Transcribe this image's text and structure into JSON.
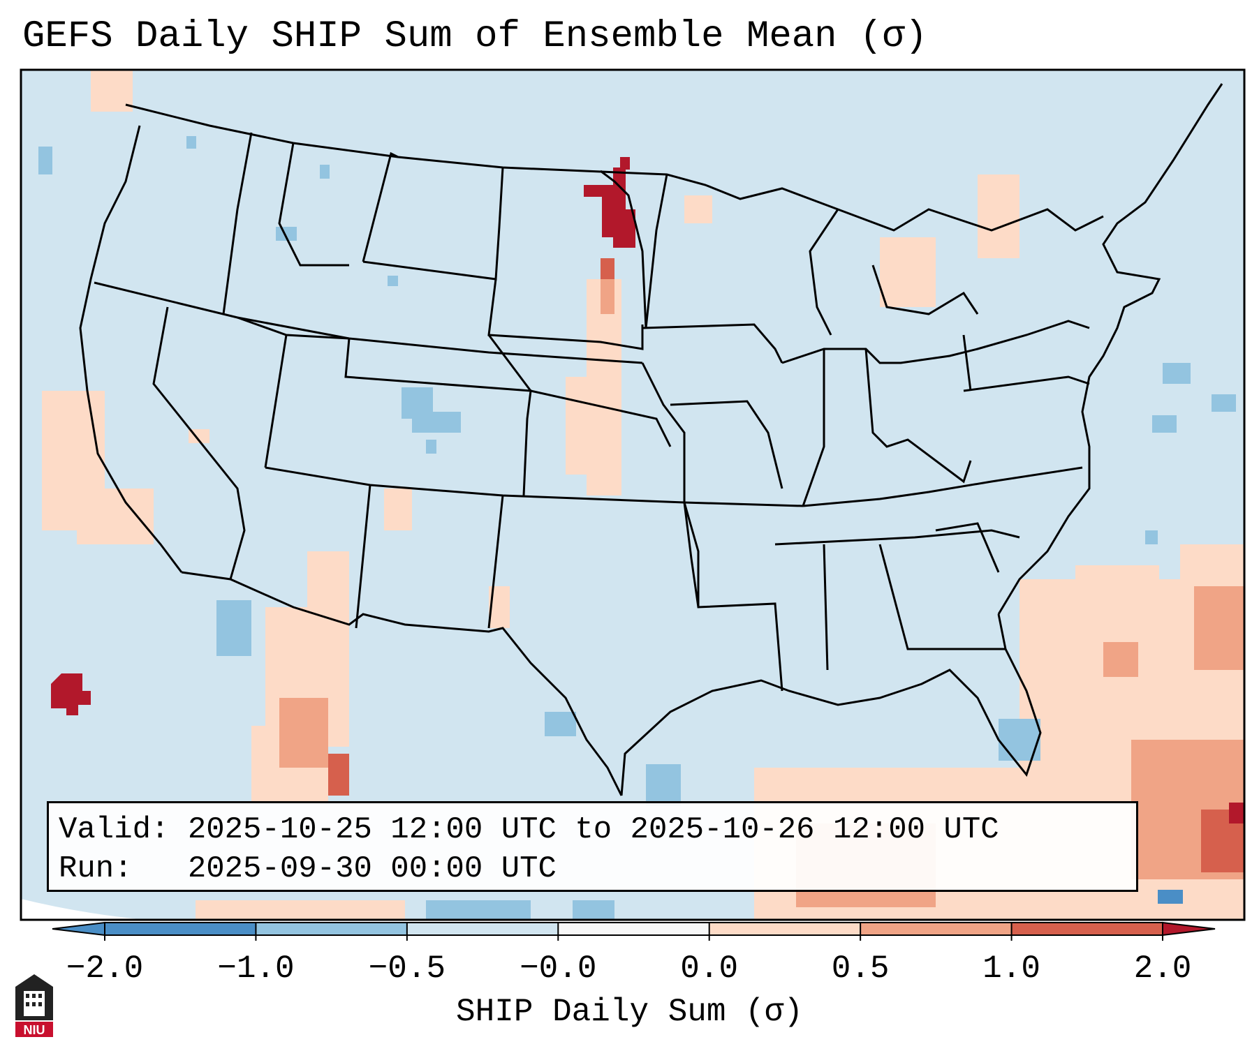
{
  "title": "GEFS Daily SHIP Sum of Ensemble Mean (σ)",
  "info": {
    "valid_label": "Valid:",
    "valid_value": "2025-10-25 12:00 UTC to 2025-10-26 12:00 UTC",
    "run_label": "Run:",
    "run_value": "2025-09-30 00:00 UTC"
  },
  "colorbar": {
    "label": "SHIP Daily Sum (σ)",
    "ticks": [
      "−2.0",
      "−1.0",
      "−0.5",
      "−0.0",
      "0.0",
      "0.5",
      "1.0",
      "2.0"
    ],
    "colors": [
      "#4a8ec6",
      "#93c4e0",
      "#d1e5f0",
      "#f7f7f7",
      "#fddbc7",
      "#f0a486",
      "#d6604d",
      "#b2182b"
    ]
  },
  "logo": {
    "text": "NIU"
  },
  "colors": {
    "background": "#d1e5f0",
    "state_lines": "#000000"
  }
}
